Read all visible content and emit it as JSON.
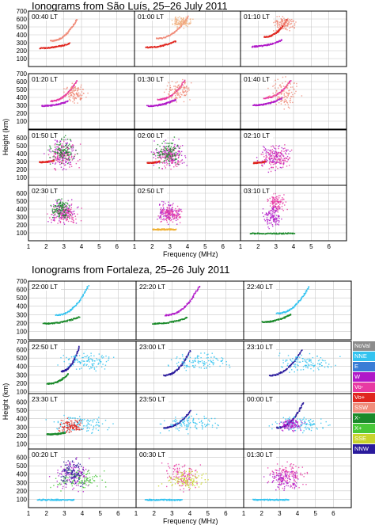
{
  "figures": [
    {
      "title": "Ionograms from São Luís, 25–26 July 2011",
      "xlabel": "Frequency (MHz)",
      "ylabel": "Height (km)",
      "panels": [
        "00:40 LT",
        "01:00 LT",
        "01:10 LT",
        "01:20 LT",
        "01:30 LT",
        "01:40 LT",
        "01:50 LT",
        "02:00 LT",
        "02:10 LT",
        "02:30 LT",
        "02:50 LT",
        "03:10 LT"
      ]
    },
    {
      "title": "Ionograms from Fortaleza, 25–26 July 2011",
      "xlabel": "Frequency (MHz)",
      "ylabel": "Height (km)",
      "panels": [
        "22:00 LT",
        "22:20 LT",
        "22:40 LT",
        "22:50 LT",
        "23:00 LT",
        "23:10 LT",
        "23:30 LT",
        "23:50 LT",
        "00:00 LT",
        "00:20 LT",
        "00:30 LT",
        "01:30 LT"
      ]
    }
  ],
  "legend": [
    {
      "label": "NoVal",
      "color": "#8c8c8c"
    },
    {
      "label": "NNE",
      "color": "#33c3f0"
    },
    {
      "label": "E",
      "color": "#3a7dd6"
    },
    {
      "label": "W",
      "color": "#b018c8"
    },
    {
      "label": "Vo-",
      "color": "#e83aa3"
    },
    {
      "label": "Vo+",
      "color": "#e0261f"
    },
    {
      "label": "SSW",
      "color": "#f08c7a"
    },
    {
      "label": "X-",
      "color": "#1a8a2a"
    },
    {
      "label": "X+",
      "color": "#48c838"
    },
    {
      "label": "SSE",
      "color": "#c8d42c"
    },
    {
      "label": "NNW",
      "color": "#2a1a9c"
    }
  ],
  "chart_data": [
    {
      "type": "scatter",
      "title": "Ionograms from São Luís, 25–26 July 2011",
      "xlabel": "Frequency (MHz)",
      "ylabel": "Height (km)",
      "xlim": [
        1,
        7
      ],
      "ylim": [
        0,
        700
      ],
      "xticks": [
        1,
        2,
        3,
        4,
        5,
        6
      ],
      "yticks_rows_1_2": [
        100,
        200,
        300,
        400,
        500,
        600,
        700
      ],
      "yticks_rows_3_4": [
        100,
        200,
        300,
        400,
        500,
        600
      ],
      "grid": true,
      "panels": [
        {
          "label": "00:40 LT",
          "traces": [
            {
              "f0": 1.6,
              "f1": 3.3,
              "h0": 240,
              "h1": 300,
              "color": "#e0261f"
            },
            {
              "f0": 2.2,
              "f1": 3.7,
              "h0": 330,
              "h1": 600,
              "color": "#f08c7a"
            }
          ],
          "clouds": []
        },
        {
          "label": "01:00 LT",
          "traces": [
            {
              "f0": 1.6,
              "f1": 3.3,
              "h0": 250,
              "h1": 330,
              "color": "#e0261f"
            },
            {
              "f0": 2.2,
              "f1": 4.0,
              "h0": 360,
              "h1": 640,
              "color": "#f08c7a"
            }
          ],
          "clouds": [
            {
              "fc": 3.6,
              "hc": 560,
              "fs": 0.3,
              "hs": 40,
              "color": "#f0b080"
            }
          ]
        },
        {
          "label": "01:10 LT",
          "traces": [
            {
              "f0": 1.6,
              "f1": 3.3,
              "h0": 260,
              "h1": 340,
              "color": "#b018c8"
            },
            {
              "f0": 2.3,
              "f1": 3.6,
              "h0": 380,
              "h1": 600,
              "color": "#e0261f"
            }
          ],
          "clouds": [
            {
              "fc": 3.5,
              "hc": 550,
              "fs": 0.35,
              "hs": 50,
              "color": "#f08c7a"
            }
          ]
        },
        {
          "label": "01:20 LT",
          "traces": [
            {
              "f0": 1.7,
              "f1": 3.2,
              "h0": 300,
              "h1": 360,
              "color": "#b018c8"
            },
            {
              "f0": 2.2,
              "f1": 3.7,
              "h0": 360,
              "h1": 620,
              "color": "#e83aa3"
            }
          ],
          "clouds": [
            {
              "fc": 3.6,
              "hc": 450,
              "fs": 0.35,
              "hs": 70,
              "color": "#f08c7a"
            }
          ]
        },
        {
          "label": "01:30 LT",
          "traces": [
            {
              "f0": 1.7,
              "f1": 3.3,
              "h0": 300,
              "h1": 380,
              "color": "#b018c8"
            },
            {
              "f0": 2.3,
              "f1": 3.8,
              "h0": 380,
              "h1": 620,
              "color": "#e83aa3"
            }
          ],
          "clouds": [
            {
              "fc": 3.5,
              "hc": 480,
              "fs": 0.4,
              "hs": 80,
              "color": "#f08c7a"
            }
          ]
        },
        {
          "label": "01:40 LT",
          "traces": [
            {
              "f0": 1.7,
              "f1": 3.3,
              "h0": 310,
              "h1": 400,
              "color": "#b018c8"
            },
            {
              "f0": 2.3,
              "f1": 3.8,
              "h0": 400,
              "h1": 620,
              "color": "#e83aa3"
            }
          ],
          "clouds": [
            {
              "fc": 3.4,
              "hc": 460,
              "fs": 0.5,
              "hs": 100,
              "color": "#f08c7a"
            }
          ]
        },
        {
          "label": "01:50 LT",
          "traces": [
            {
              "f0": 1.6,
              "f1": 2.4,
              "h0": 300,
              "h1": 320,
              "color": "#e0261f"
            }
          ],
          "clouds": [
            {
              "fc": 2.9,
              "hc": 410,
              "fs": 0.45,
              "hs": 110,
              "color": "#b018c8"
            },
            {
              "fc": 3.0,
              "hc": 380,
              "fs": 0.5,
              "hs": 90,
              "color": "#e83aa3"
            },
            {
              "fc": 2.9,
              "hc": 440,
              "fs": 0.4,
              "hs": 100,
              "color": "#1a8a2a"
            }
          ]
        },
        {
          "label": "02:00 LT",
          "traces": [
            {
              "f0": 1.7,
              "f1": 2.4,
              "h0": 290,
              "h1": 310,
              "color": "#e0261f"
            }
          ],
          "clouds": [
            {
              "fc": 2.9,
              "hc": 390,
              "fs": 0.5,
              "hs": 100,
              "color": "#b018c8"
            },
            {
              "fc": 3.0,
              "hc": 360,
              "fs": 0.5,
              "hs": 80,
              "color": "#e83aa3"
            },
            {
              "fc": 2.8,
              "hc": 420,
              "fs": 0.4,
              "hs": 90,
              "color": "#1a8a2a"
            }
          ]
        },
        {
          "label": "02:10 LT",
          "traces": [
            {
              "f0": 1.7,
              "f1": 2.4,
              "h0": 290,
              "h1": 310,
              "color": "#e0261f"
            }
          ],
          "clouds": [
            {
              "fc": 2.9,
              "hc": 380,
              "fs": 0.5,
              "hs": 90,
              "color": "#b018c8"
            },
            {
              "fc": 3.0,
              "hc": 350,
              "fs": 0.5,
              "hs": 80,
              "color": "#e83aa3"
            }
          ]
        },
        {
          "label": "02:30 LT",
          "traces": [],
          "clouds": [
            {
              "fc": 2.9,
              "hc": 370,
              "fs": 0.45,
              "hs": 90,
              "color": "#b018c8"
            },
            {
              "fc": 3.0,
              "hc": 340,
              "fs": 0.5,
              "hs": 70,
              "color": "#e83aa3"
            },
            {
              "fc": 2.8,
              "hc": 400,
              "fs": 0.3,
              "hs": 80,
              "color": "#1a8a2a"
            }
          ]
        },
        {
          "label": "02:50 LT",
          "traces": [
            {
              "f0": 2.0,
              "f1": 3.3,
              "h0": 150,
              "h1": 150,
              "color": "#f0b030"
            }
          ],
          "clouds": [
            {
              "fc": 2.9,
              "hc": 360,
              "fs": 0.4,
              "hs": 70,
              "color": "#b018c8"
            },
            {
              "fc": 3.0,
              "hc": 340,
              "fs": 0.4,
              "hs": 60,
              "color": "#e83aa3"
            }
          ]
        },
        {
          "label": "03:10 LT",
          "traces": [
            {
              "f0": 1.5,
              "f1": 4.0,
              "h0": 100,
              "h1": 100,
              "color": "#1a8a2a"
            }
          ],
          "clouds": [
            {
              "fc": 3.0,
              "hc": 480,
              "fs": 0.3,
              "hs": 60,
              "color": "#e83aa3"
            },
            {
              "fc": 2.8,
              "hc": 300,
              "fs": 0.3,
              "hs": 70,
              "color": "#b018c8"
            }
          ]
        }
      ]
    },
    {
      "type": "scatter",
      "title": "Ionograms from Fortaleza, 25–26 July 2011",
      "xlabel": "Frequency (MHz)",
      "ylabel": "Height (km)",
      "xlim": [
        1,
        7
      ],
      "ylim": [
        0,
        700
      ],
      "xticks": [
        1,
        2,
        3,
        4,
        5,
        6
      ],
      "yticks_rows_1_2": [
        100,
        200,
        300,
        400,
        500,
        600,
        700
      ],
      "yticks_rows_3_4": [
        100,
        200,
        300,
        400,
        500,
        600
      ],
      "grid": true,
      "panels": [
        {
          "label": "22:00 LT",
          "traces": [
            {
              "f0": 1.8,
              "f1": 3.8,
              "h0": 200,
              "h1": 280,
              "color": "#1a8a2a"
            },
            {
              "f0": 2.5,
              "f1": 4.3,
              "h0": 300,
              "h1": 650,
              "color": "#33c3f0"
            }
          ],
          "clouds": []
        },
        {
          "label": "22:20 LT",
          "traces": [
            {
              "f0": 1.9,
              "f1": 3.8,
              "h0": 200,
              "h1": 270,
              "color": "#1a8a2a"
            },
            {
              "f0": 2.6,
              "f1": 4.5,
              "h0": 300,
              "h1": 650,
              "color": "#b018c8"
            }
          ],
          "clouds": []
        },
        {
          "label": "22:40 LT",
          "traces": [
            {
              "f0": 2.0,
              "f1": 3.6,
              "h0": 220,
              "h1": 310,
              "color": "#1a8a2a"
            },
            {
              "f0": 2.8,
              "f1": 4.6,
              "h0": 320,
              "h1": 640,
              "color": "#33c3f0"
            }
          ],
          "clouds": []
        },
        {
          "label": "22:50 LT",
          "traces": [
            {
              "f0": 2.0,
              "f1": 3.2,
              "h0": 200,
              "h1": 320,
              "color": "#1a8a2a"
            },
            {
              "f0": 2.8,
              "f1": 3.8,
              "h0": 350,
              "h1": 640,
              "color": "#2a1a9c"
            }
          ],
          "clouds": [
            {
              "fc": 4.2,
              "hc": 470,
              "fs": 0.8,
              "hs": 60,
              "color": "#33c3f0"
            }
          ]
        },
        {
          "label": "23:00 LT",
          "traces": [
            {
              "f0": 2.5,
              "f1": 4.0,
              "h0": 300,
              "h1": 600,
              "color": "#2a1a9c"
            }
          ],
          "clouds": [
            {
              "fc": 4.5,
              "hc": 460,
              "fs": 1.0,
              "hs": 60,
              "color": "#33c3f0"
            }
          ]
        },
        {
          "label": "23:10 LT",
          "traces": [
            {
              "f0": 2.4,
              "f1": 4.2,
              "h0": 300,
              "h1": 600,
              "color": "#2a1a9c"
            }
          ],
          "clouds": [
            {
              "fc": 4.5,
              "hc": 450,
              "fs": 1.0,
              "hs": 60,
              "color": "#33c3f0"
            }
          ]
        },
        {
          "label": "23:30 LT",
          "traces": [
            {
              "f0": 2.0,
              "f1": 3.0,
              "h0": 220,
              "h1": 240,
              "color": "#1a8a2a"
            }
          ],
          "clouds": [
            {
              "fc": 3.8,
              "hc": 340,
              "fs": 0.9,
              "hs": 60,
              "color": "#33c3f0"
            },
            {
              "fc": 3.3,
              "hc": 320,
              "fs": 0.4,
              "hs": 50,
              "color": "#e0261f"
            }
          ]
        },
        {
          "label": "23:50 LT",
          "traces": [
            {
              "f0": 2.5,
              "f1": 4.0,
              "h0": 300,
              "h1": 500,
              "color": "#2a1a9c"
            }
          ],
          "clouds": [
            {
              "fc": 4.0,
              "hc": 350,
              "fs": 0.9,
              "hs": 60,
              "color": "#33c3f0"
            }
          ]
        },
        {
          "label": "00:00 LT",
          "traces": [
            {
              "f0": 2.8,
              "f1": 4.3,
              "h0": 300,
              "h1": 600,
              "color": "#2a1a9c"
            }
          ],
          "clouds": [
            {
              "fc": 4.0,
              "hc": 340,
              "fs": 0.9,
              "hs": 50,
              "color": "#33c3f0"
            },
            {
              "fc": 3.6,
              "hc": 330,
              "fs": 0.4,
              "hs": 40,
              "color": "#b018c8"
            }
          ]
        },
        {
          "label": "00:20 LT",
          "traces": [
            {
              "f0": 1.5,
              "f1": 3.5,
              "h0": 100,
              "h1": 100,
              "color": "#33c3f0"
            }
          ],
          "clouds": [
            {
              "fc": 3.5,
              "hc": 400,
              "fs": 0.6,
              "hs": 100,
              "color": "#b018c8"
            },
            {
              "fc": 3.8,
              "hc": 350,
              "fs": 0.8,
              "hs": 70,
              "color": "#48c838"
            },
            {
              "fc": 3.4,
              "hc": 420,
              "fs": 0.4,
              "hs": 90,
              "color": "#2a1a9c"
            }
          ]
        },
        {
          "label": "00:30 LT",
          "traces": [
            {
              "f0": 1.5,
              "f1": 3.5,
              "h0": 100,
              "h1": 100,
              "color": "#33c3f0"
            }
          ],
          "clouds": [
            {
              "fc": 3.5,
              "hc": 380,
              "fs": 0.6,
              "hs": 90,
              "color": "#e83aa3"
            },
            {
              "fc": 3.7,
              "hc": 340,
              "fs": 0.7,
              "hs": 60,
              "color": "#c8d42c"
            }
          ]
        },
        {
          "label": "01:30 LT",
          "traces": [
            {
              "f0": 1.5,
              "f1": 3.5,
              "h0": 100,
              "h1": 100,
              "color": "#33c3f0"
            }
          ],
          "clouds": [
            {
              "fc": 3.5,
              "hc": 400,
              "fs": 0.6,
              "hs": 90,
              "color": "#e83aa3"
            },
            {
              "fc": 3.2,
              "hc": 350,
              "fs": 0.5,
              "hs": 70,
              "color": "#b018c8"
            }
          ]
        }
      ]
    }
  ]
}
